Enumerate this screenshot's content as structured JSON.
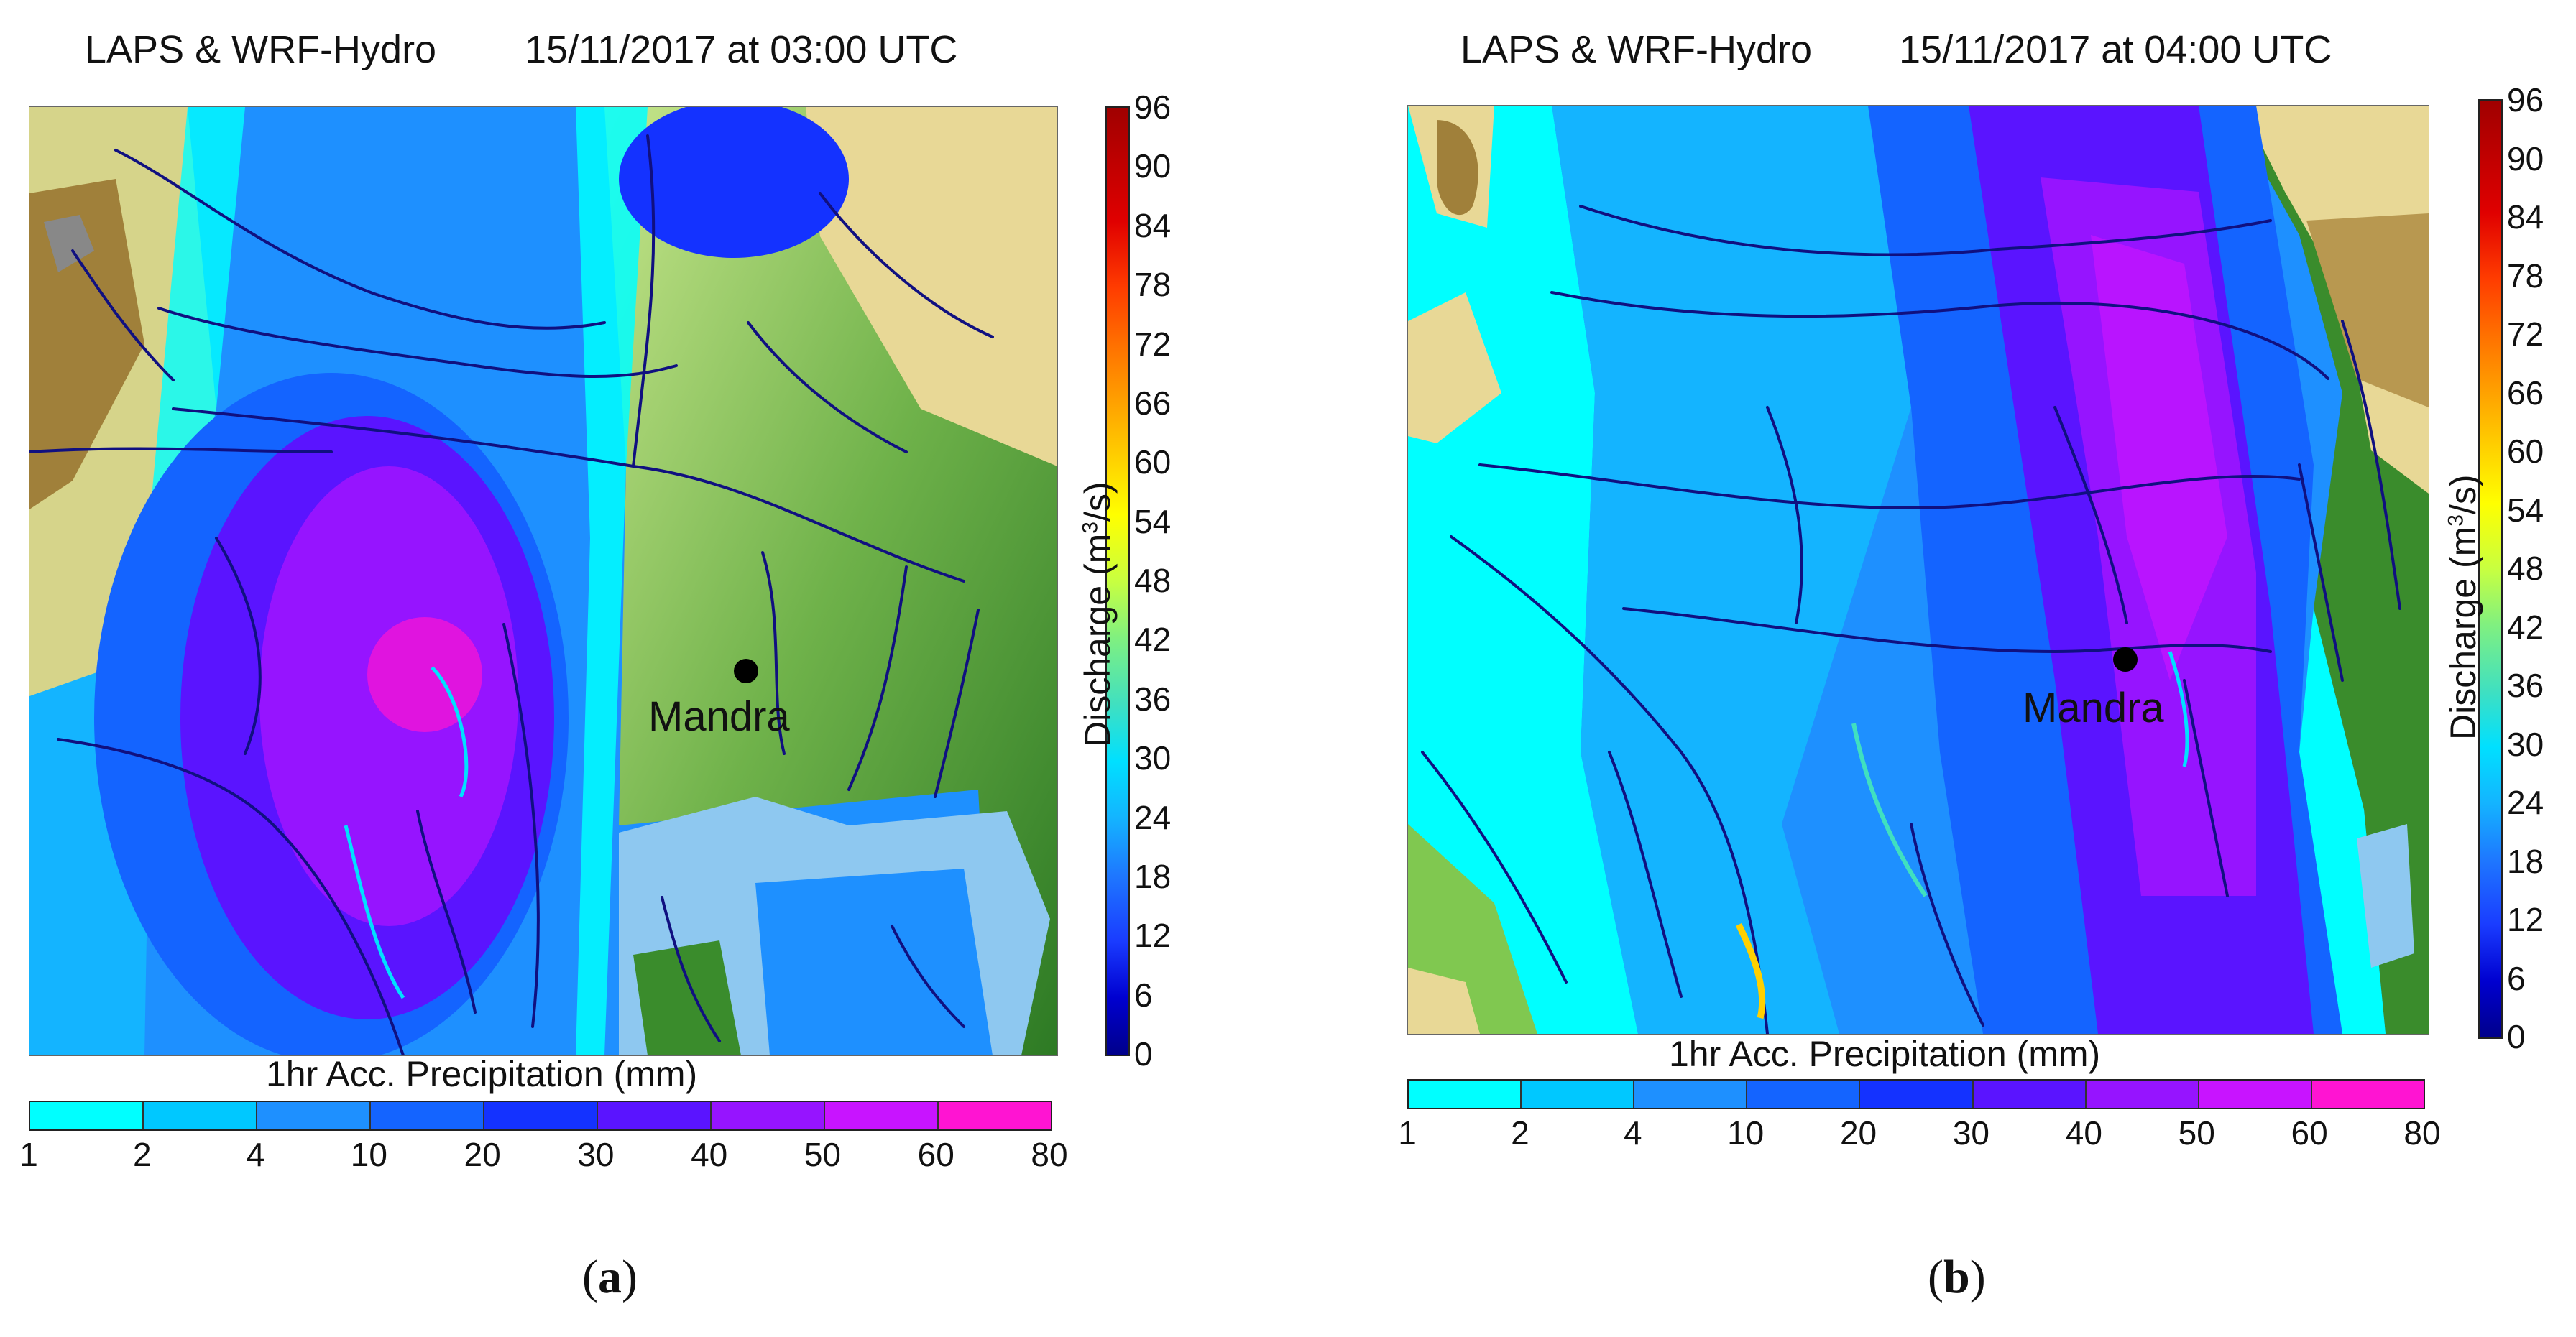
{
  "panels": [
    {
      "id": "a",
      "title_left": "LAPS & WRF-Hydro",
      "title_right": "15/11/2017 at 03:00 UTC",
      "city": "Mandra",
      "discharge_label": "Discharge (m",
      "discharge_unit_sup": "3",
      "discharge_unit_end": "/s)",
      "discharge_ticks": [
        "96",
        "90",
        "84",
        "78",
        "72",
        "66",
        "60",
        "54",
        "48",
        "42",
        "36",
        "30",
        "24",
        "18",
        "12",
        "6",
        "0"
      ],
      "precip_label": "1hr Acc. Precipitation (mm)",
      "precip_ticks": [
        "1",
        "2",
        "4",
        "10",
        "20",
        "30",
        "40",
        "50",
        "60",
        "80"
      ],
      "caption_open": "(",
      "caption_letter": "a",
      "caption_close": ")"
    },
    {
      "id": "b",
      "title_left": "LAPS & WRF-Hydro",
      "title_right": "15/11/2017 at 04:00 UTC",
      "city": "Mandra",
      "discharge_label": "Discharge (m",
      "discharge_unit_sup": "3",
      "discharge_unit_end": "/s)",
      "discharge_ticks": [
        "96",
        "90",
        "84",
        "78",
        "72",
        "66",
        "60",
        "54",
        "48",
        "42",
        "36",
        "30",
        "24",
        "18",
        "12",
        "6",
        "0"
      ],
      "precip_label": "1hr Acc. Precipitation (mm)",
      "precip_ticks": [
        "1",
        "2",
        "4",
        "10",
        "20",
        "30",
        "40",
        "50",
        "60",
        "80"
      ],
      "caption_open": "(",
      "caption_letter": "b",
      "caption_close": ")"
    }
  ],
  "colors": {
    "precip_scale": [
      "#00ffff",
      "#00c8ff",
      "#1e90ff",
      "#1464ff",
      "#1432ff",
      "#5a14ff",
      "#9614ff",
      "#c814ff",
      "#ff14d2"
    ],
    "discharge_scale": [
      "#00008b",
      "#0000d0",
      "#1a3cff",
      "#1e78ff",
      "#14b4ff",
      "#00e0ff",
      "#40e0c0",
      "#80f080",
      "#c8ff40",
      "#ffff00",
      "#ffd000",
      "#ffa000",
      "#ff7000",
      "#ff3c00",
      "#e00000",
      "#a00000"
    ],
    "terrain_low": "#3a8c2c",
    "terrain_mid": "#c8e68c",
    "terrain_high": "#a07a30",
    "sea": "#8ec8f0",
    "river": "#101080"
  }
}
